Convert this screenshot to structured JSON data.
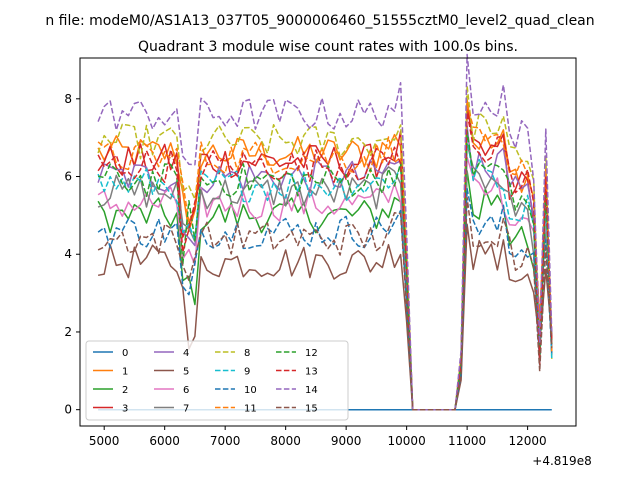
{
  "chart_data": {
    "type": "line",
    "suptitle": "n file: modeM0/AS1A13_037T05_9000006460_51555cztM0_level2_quad_clean",
    "title": "Quadrant 3 module wise count rates with 100.0s bins.",
    "xlabel": "",
    "ylabel": "",
    "x_offset_label": "+4.819e8",
    "xlim": [
      4600,
      12800
    ],
    "ylim": [
      -0.42,
      9.05
    ],
    "xticks": [
      5000,
      6000,
      7000,
      8000,
      9000,
      10000,
      11000,
      12000
    ],
    "yticks": [
      0,
      2,
      4,
      6,
      8
    ],
    "x_start": 4900,
    "x_step": 100,
    "gap_start": 10100,
    "gap_end": 10800,
    "grid": false,
    "legend_position": "lower-left",
    "series": [
      {
        "name": "0",
        "color": "#1f77b4",
        "style": "solid",
        "level": 0
      },
      {
        "name": "1",
        "color": "#ff7f0e",
        "style": "solid",
        "level": 6.6
      },
      {
        "name": "2",
        "color": "#2ca02c",
        "style": "solid",
        "level": 5.0
      },
      {
        "name": "3",
        "color": "#d62728",
        "style": "solid",
        "level": 6.4
      },
      {
        "name": "4",
        "color": "#9467bd",
        "style": "solid",
        "level": 6.0
      },
      {
        "name": "5",
        "color": "#8c564b",
        "style": "solid",
        "level": 3.8
      },
      {
        "name": "6",
        "color": "#e377c2",
        "style": "solid",
        "level": 5.3
      },
      {
        "name": "7",
        "color": "#7f7f7f",
        "style": "solid",
        "level": 5.6
      },
      {
        "name": "8",
        "color": "#bcbd22",
        "style": "dashed",
        "level": 6.9
      },
      {
        "name": "9",
        "color": "#17becf",
        "style": "dashed",
        "level": 5.8
      },
      {
        "name": "10",
        "color": "#1f77b4",
        "style": "dashed",
        "level": 4.6
      },
      {
        "name": "11",
        "color": "#ff7f0e",
        "style": "dashed",
        "level": 6.5
      },
      {
        "name": "12",
        "color": "#2ca02c",
        "style": "dashed",
        "level": 5.9
      },
      {
        "name": "13",
        "color": "#d62728",
        "style": "dashed",
        "level": 6.3
      },
      {
        "name": "14",
        "color": "#9467bd",
        "style": "dashed",
        "level": 7.6
      },
      {
        "name": "15",
        "color": "#8c564b",
        "style": "dashed",
        "level": 4.4
      }
    ]
  }
}
